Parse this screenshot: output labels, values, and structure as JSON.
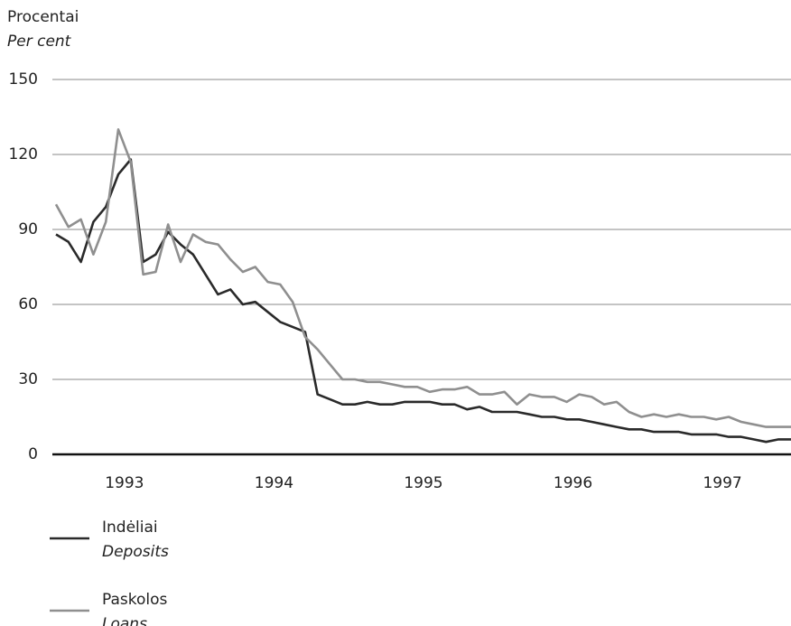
{
  "chart_data": {
    "type": "line",
    "y_label": "Procentai",
    "y_label_en": "Per cent",
    "categories": [
      null,
      null,
      null,
      null,
      null,
      null,
      "1993",
      null,
      null,
      null,
      null,
      null,
      null,
      null,
      null,
      null,
      null,
      null,
      "1994",
      null,
      null,
      null,
      null,
      null,
      null,
      null,
      null,
      null,
      null,
      null,
      "1995",
      null,
      null,
      null,
      null,
      null,
      null,
      null,
      null,
      null,
      null,
      null,
      "1996",
      null,
      null,
      null,
      null,
      null,
      null,
      null,
      null,
      null,
      null,
      null,
      "1997",
      null,
      null,
      null,
      null,
      null
    ],
    "ylim": [
      0,
      150
    ],
    "yticks": [
      0,
      30,
      60,
      90,
      120,
      150
    ],
    "grid": true,
    "series": [
      {
        "name": "Indėliai",
        "subname": "Deposits",
        "color": "#2a2a2a",
        "values": [
          88,
          85,
          77,
          93,
          99,
          112,
          118,
          77,
          80,
          89,
          84,
          80,
          72,
          64,
          66,
          60,
          61,
          57,
          53,
          51,
          49,
          24,
          22,
          20,
          20,
          21,
          20,
          20,
          21,
          21,
          21,
          20,
          20,
          18,
          19,
          17,
          17,
          17,
          16,
          15,
          15,
          14,
          14,
          13,
          12,
          11,
          10,
          10,
          9,
          9,
          9,
          8,
          8,
          8,
          7,
          7,
          6,
          5,
          6,
          6
        ]
      },
      {
        "name": "Paskolos",
        "subname": "Loans",
        "color": "#8f8f8f",
        "values": [
          100,
          91,
          94,
          80,
          93,
          130,
          117,
          72,
          73,
          92,
          77,
          88,
          85,
          84,
          78,
          73,
          75,
          69,
          68,
          61,
          47,
          42,
          36,
          30,
          30,
          29,
          29,
          28,
          27,
          27,
          25,
          26,
          26,
          27,
          24,
          24,
          25,
          20,
          24,
          23,
          23,
          21,
          24,
          23,
          20,
          21,
          17,
          15,
          16,
          15,
          16,
          15,
          15,
          14,
          15,
          13,
          12,
          11,
          11,
          11
        ]
      }
    ]
  }
}
